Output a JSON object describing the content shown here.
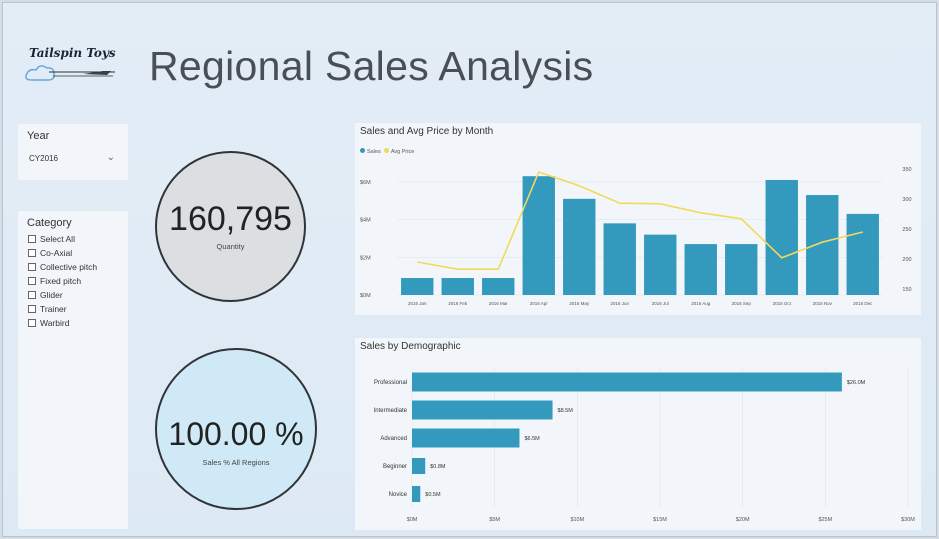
{
  "logo": {
    "text": "Tailspin Toys"
  },
  "page": {
    "title": "Regional Sales Analysis"
  },
  "slicers": {
    "year": {
      "label": "Year",
      "selected": "CY2016"
    },
    "category": {
      "label": "Category",
      "items": [
        "Select All",
        "Co-Axial",
        "Collective pitch",
        "Fixed pitch",
        "Glider",
        "Trainer",
        "Warbird"
      ]
    }
  },
  "kpis": {
    "quantity": {
      "value": "160,795",
      "label": "Quantity"
    },
    "sales_pct": {
      "value": "100.00 %",
      "label": "Sales % All Regions"
    }
  },
  "colors": {
    "bar": "#3399bd",
    "line": "#f2d95c"
  },
  "chart_data": [
    {
      "type": "bar",
      "title": "Sales and Avg Price by Month",
      "legend": [
        "Sales",
        "Avg Price"
      ],
      "categories": [
        "2016 Jan",
        "2016 Feb",
        "2016 Mar",
        "2016 Apr",
        "2016 May",
        "2016 Jun",
        "2016 Jul",
        "2016 Aug",
        "2016 Sep",
        "2016 Oct",
        "2016 Nov",
        "2016 Dec"
      ],
      "series": [
        {
          "name": "Sales",
          "type": "bar",
          "axis": "left",
          "values": [
            0.9,
            0.9,
            0.9,
            6.3,
            5.1,
            3.8,
            3.2,
            2.7,
            2.7,
            6.1,
            5.3,
            4.3
          ]
        },
        {
          "name": "Avg Price",
          "type": "line",
          "axis": "right",
          "values": [
            195,
            183,
            183,
            345,
            322,
            293,
            292,
            277,
            267,
            202,
            228,
            245
          ]
        }
      ],
      "y_left": {
        "ticks": [
          "$0M",
          "$2M",
          "$4M",
          "$6M"
        ],
        "range": [
          0,
          7
        ]
      },
      "y_right": {
        "ticks": [
          "150",
          "200",
          "250",
          "300",
          "350"
        ],
        "range": [
          140,
          360
        ]
      }
    },
    {
      "type": "bar",
      "orientation": "horizontal",
      "title": "Sales by Demographic",
      "categories": [
        "Professional",
        "Intermediate",
        "Advanced",
        "Beginner",
        "Novice"
      ],
      "values": [
        26.0,
        8.5,
        6.5,
        0.8,
        0.5
      ],
      "value_labels": [
        "$26.0M",
        "$8.5M",
        "$6.5M",
        "$0.8M",
        "$0.5M"
      ],
      "x_ticks": [
        "$0M",
        "$5M",
        "$10M",
        "$15M",
        "$20M",
        "$25M",
        "$30M"
      ],
      "xlim": [
        0,
        30
      ]
    }
  ]
}
